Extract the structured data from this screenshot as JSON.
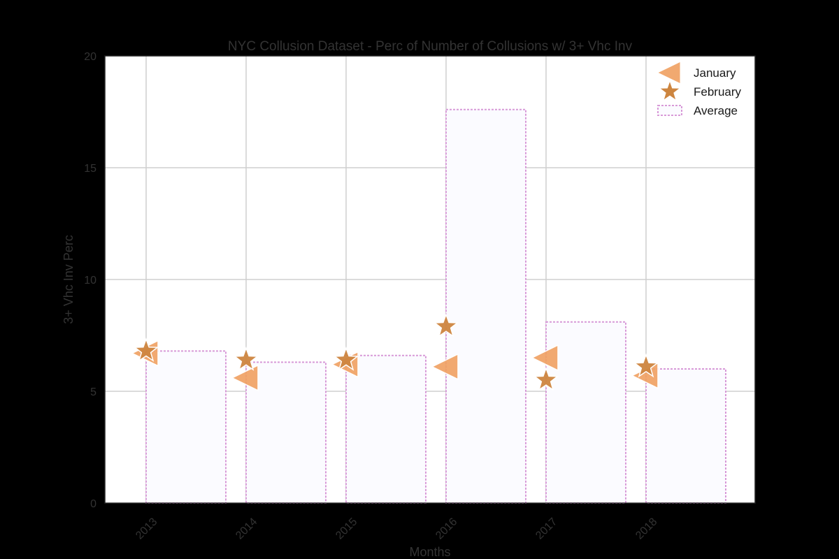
{
  "chart_data": {
    "type": "bar",
    "title": "NYC Collusion Dataset - Perc of Number of Collusions w/ 3+ Vhc Inv",
    "xlabel": "Months",
    "ylabel": "3+ Vhc Inv Perc",
    "categories": [
      "2013",
      "2014",
      "2015",
      "2016",
      "2017",
      "2018"
    ],
    "ylim": [
      0,
      20
    ],
    "yticks": [
      0,
      5,
      10,
      15,
      20
    ],
    "grid": true,
    "legend_position": "top-right",
    "series": [
      {
        "name": "January",
        "kind": "scatter",
        "marker": "triangle-left",
        "color": "#f0a060",
        "values": [
          6.7,
          5.6,
          6.2,
          6.1,
          6.5,
          5.7
        ]
      },
      {
        "name": "February",
        "kind": "scatter",
        "marker": "star",
        "color": "#cd853f",
        "values": [
          6.8,
          6.4,
          6.4,
          7.9,
          5.5,
          6.1
        ]
      },
      {
        "name": "Average",
        "kind": "bar",
        "color": "#d89ad8",
        "fill": "#fbfbff",
        "values": [
          6.8,
          6.3,
          6.6,
          17.6,
          8.1,
          6.0
        ]
      }
    ]
  }
}
